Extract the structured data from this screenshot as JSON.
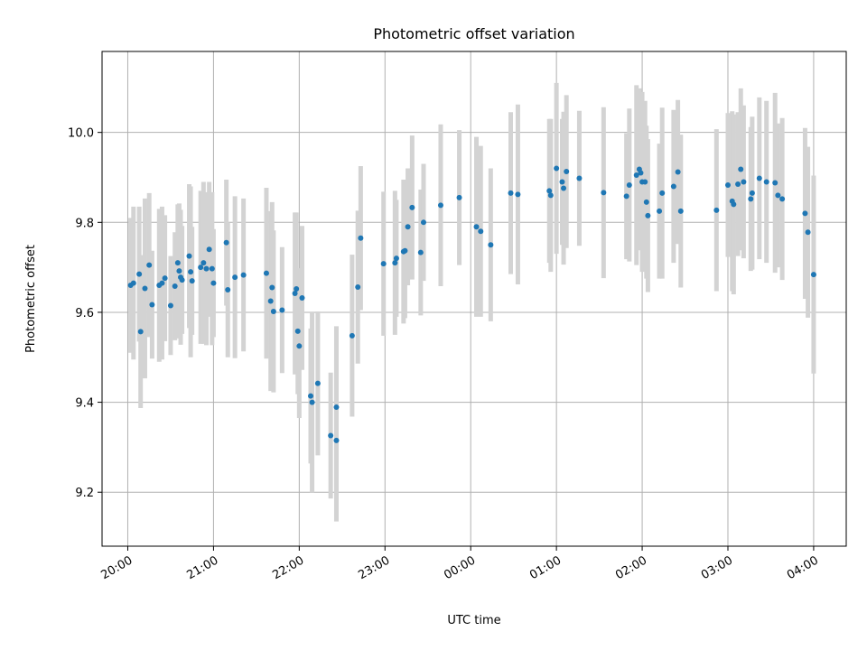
{
  "chart_data": {
    "type": "scatter",
    "title": "Photometric offset variation",
    "xlabel": "UTC time",
    "ylabel": "Photometric offset",
    "x_ticks": [
      "20:00",
      "21:00",
      "22:00",
      "23:00",
      "00:00",
      "01:00",
      "02:00",
      "03:00",
      "04:00"
    ],
    "y_ticks": [
      "9.2",
      "9.4",
      "9.6",
      "9.8",
      "10.0"
    ],
    "ylim": [
      9.08,
      10.18
    ],
    "xlim_hours": [
      19.7,
      28.38
    ],
    "grid": true,
    "marker_color": "#1f77b4",
    "errorbar_color": "#d3d3d3",
    "series": [
      {
        "points": [
          {
            "t": "20:02",
            "y": 9.66,
            "e": 0.15
          },
          {
            "t": "20:04",
            "y": 9.665,
            "e": 0.17
          },
          {
            "t": "20:08",
            "y": 9.685,
            "e": 0.15
          },
          {
            "t": "20:09",
            "y": 9.557,
            "e": 0.17
          },
          {
            "t": "20:12",
            "y": 9.653,
            "e": 0.2
          },
          {
            "t": "20:15",
            "y": 9.705,
            "e": 0.16
          },
          {
            "t": "20:17",
            "y": 9.617,
            "e": 0.12
          },
          {
            "t": "20:22",
            "y": 9.66,
            "e": 0.17
          },
          {
            "t": "20:24",
            "y": 9.665,
            "e": 0.17
          },
          {
            "t": "20:26",
            "y": 9.676,
            "e": 0.14
          },
          {
            "t": "20:30",
            "y": 9.615,
            "e": 0.11
          },
          {
            "t": "20:33",
            "y": 9.658,
            "e": 0.12
          },
          {
            "t": "20:35",
            "y": 9.71,
            "e": 0.13
          },
          {
            "t": "20:36",
            "y": 9.692,
            "e": 0.15
          },
          {
            "t": "20:37",
            "y": 9.678,
            "e": 0.15
          },
          {
            "t": "20:38",
            "y": 9.672,
            "e": 0.12
          },
          {
            "t": "20:43",
            "y": 9.725,
            "e": 0.16
          },
          {
            "t": "20:44",
            "y": 9.69,
            "e": 0.19
          },
          {
            "t": "20:45",
            "y": 9.67,
            "e": 0.12
          },
          {
            "t": "20:51",
            "y": 9.7,
            "e": 0.17
          },
          {
            "t": "20:53",
            "y": 9.71,
            "e": 0.18
          },
          {
            "t": "20:55",
            "y": 9.697,
            "e": 0.17
          },
          {
            "t": "20:57",
            "y": 9.74,
            "e": 0.15
          },
          {
            "t": "20:59",
            "y": 9.697,
            "e": 0.17
          },
          {
            "t": "21:00",
            "y": 9.665,
            "e": 0.12
          },
          {
            "t": "21:09",
            "y": 9.755,
            "e": 0.14
          },
          {
            "t": "21:10",
            "y": 9.65,
            "e": 0.15
          },
          {
            "t": "21:15",
            "y": 9.678,
            "e": 0.18
          },
          {
            "t": "21:21",
            "y": 9.683,
            "e": 0.17
          },
          {
            "t": "21:37",
            "y": 9.687,
            "e": 0.19
          },
          {
            "t": "21:40",
            "y": 9.625,
            "e": 0.2
          },
          {
            "t": "21:41",
            "y": 9.655,
            "e": 0.19
          },
          {
            "t": "21:42",
            "y": 9.602,
            "e": 0.18
          },
          {
            "t": "21:48",
            "y": 9.605,
            "e": 0.14
          },
          {
            "t": "21:57",
            "y": 9.642,
            "e": 0.18
          },
          {
            "t": "21:58",
            "y": 9.652,
            "e": 0.17
          },
          {
            "t": "21:59",
            "y": 9.558,
            "e": 0.14
          },
          {
            "t": "22:00",
            "y": 9.525,
            "e": 0.16
          },
          {
            "t": "22:02",
            "y": 9.632,
            "e": 0.16
          },
          {
            "t": "22:08",
            "y": 9.414,
            "e": 0.15
          },
          {
            "t": "22:09",
            "y": 9.4,
            "e": 0.2
          },
          {
            "t": "22:13",
            "y": 9.442,
            "e": 0.16
          },
          {
            "t": "22:22",
            "y": 9.326,
            "e": 0.14
          },
          {
            "t": "22:26",
            "y": 9.389,
            "e": 0.18
          },
          {
            "t": "22:26",
            "y": 9.315,
            "e": 0.18
          },
          {
            "t": "22:37",
            "y": 9.548,
            "e": 0.18
          },
          {
            "t": "22:41",
            "y": 9.656,
            "e": 0.17
          },
          {
            "t": "22:43",
            "y": 9.765,
            "e": 0.16
          },
          {
            "t": "22:59",
            "y": 9.708,
            "e": 0.16
          },
          {
            "t": "23:07",
            "y": 9.71,
            "e": 0.16
          },
          {
            "t": "23:08",
            "y": 9.72,
            "e": 0.13
          },
          {
            "t": "23:13",
            "y": 9.735,
            "e": 0.16
          },
          {
            "t": "23:14",
            "y": 9.737,
            "e": 0.15
          },
          {
            "t": "23:16",
            "y": 9.79,
            "e": 0.13
          },
          {
            "t": "23:19",
            "y": 9.833,
            "e": 0.16
          },
          {
            "t": "23:25",
            "y": 9.733,
            "e": 0.14
          },
          {
            "t": "23:27",
            "y": 9.8,
            "e": 0.13
          },
          {
            "t": "23:39",
            "y": 9.838,
            "e": 0.18
          },
          {
            "t": "23:52",
            "y": 9.855,
            "e": 0.15
          },
          {
            "t": "00:04",
            "y": 9.79,
            "e": 0.2
          },
          {
            "t": "00:07",
            "y": 9.78,
            "e": 0.19
          },
          {
            "t": "00:14",
            "y": 9.75,
            "e": 0.17
          },
          {
            "t": "00:28",
            "y": 9.865,
            "e": 0.18
          },
          {
            "t": "00:33",
            "y": 9.862,
            "e": 0.2
          },
          {
            "t": "00:55",
            "y": 9.87,
            "e": 0.16
          },
          {
            "t": "00:56",
            "y": 9.86,
            "e": 0.17
          },
          {
            "t": "01:00",
            "y": 9.92,
            "e": 0.19
          },
          {
            "t": "01:04",
            "y": 9.89,
            "e": 0.14
          },
          {
            "t": "01:05",
            "y": 9.876,
            "e": 0.17
          },
          {
            "t": "01:07",
            "y": 9.913,
            "e": 0.17
          },
          {
            "t": "01:16",
            "y": 9.898,
            "e": 0.15
          },
          {
            "t": "01:33",
            "y": 9.866,
            "e": 0.19
          },
          {
            "t": "01:49",
            "y": 9.858,
            "e": 0.14
          },
          {
            "t": "01:51",
            "y": 9.883,
            "e": 0.17
          },
          {
            "t": "01:56",
            "y": 9.905,
            "e": 0.2
          },
          {
            "t": "01:58",
            "y": 9.918,
            "e": 0.18
          },
          {
            "t": "01:59",
            "y": 9.91,
            "e": 0.16
          },
          {
            "t": "02:00",
            "y": 9.89,
            "e": 0.2
          },
          {
            "t": "02:02",
            "y": 9.89,
            "e": 0.18
          },
          {
            "t": "02:03",
            "y": 9.845,
            "e": 0.17
          },
          {
            "t": "02:04",
            "y": 9.815,
            "e": 0.17
          },
          {
            "t": "02:12",
            "y": 9.825,
            "e": 0.15
          },
          {
            "t": "02:14",
            "y": 9.865,
            "e": 0.19
          },
          {
            "t": "02:22",
            "y": 9.88,
            "e": 0.17
          },
          {
            "t": "02:25",
            "y": 9.912,
            "e": 0.16
          },
          {
            "t": "02:27",
            "y": 9.825,
            "e": 0.17
          },
          {
            "t": "02:52",
            "y": 9.827,
            "e": 0.18
          },
          {
            "t": "03:00",
            "y": 9.883,
            "e": 0.16
          },
          {
            "t": "03:03",
            "y": 9.847,
            "e": 0.2
          },
          {
            "t": "03:04",
            "y": 9.84,
            "e": 0.2
          },
          {
            "t": "03:07",
            "y": 9.885,
            "e": 0.16
          },
          {
            "t": "03:09",
            "y": 9.918,
            "e": 0.18
          },
          {
            "t": "03:11",
            "y": 9.89,
            "e": 0.17
          },
          {
            "t": "03:16",
            "y": 9.852,
            "e": 0.16
          },
          {
            "t": "03:17",
            "y": 9.865,
            "e": 0.17
          },
          {
            "t": "03:22",
            "y": 9.898,
            "e": 0.18
          },
          {
            "t": "03:27",
            "y": 9.89,
            "e": 0.18
          },
          {
            "t": "03:33",
            "y": 9.888,
            "e": 0.2
          },
          {
            "t": "03:35",
            "y": 9.86,
            "e": 0.16
          },
          {
            "t": "03:38",
            "y": 9.852,
            "e": 0.18
          },
          {
            "t": "03:54",
            "y": 9.82,
            "e": 0.19
          },
          {
            "t": "03:56",
            "y": 9.778,
            "e": 0.19
          },
          {
            "t": "04:00",
            "y": 9.684,
            "e": 0.22
          }
        ]
      }
    ]
  }
}
